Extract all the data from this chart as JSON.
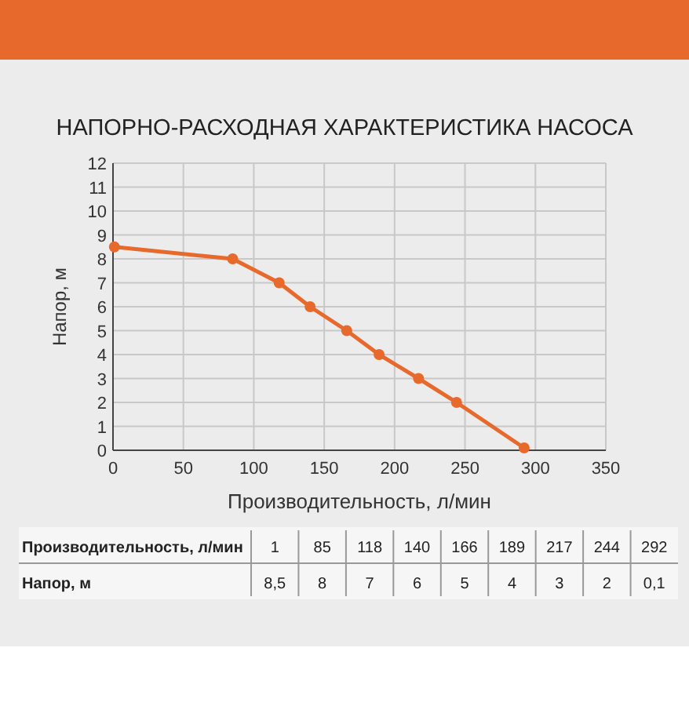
{
  "chart_data": [
    {
      "type": "line",
      "title": "НАПОРНО-РАСХОДНАЯ ХАРАКТЕРИСТИКА НАСОСА",
      "xlabel": "Производительность, л/мин",
      "ylabel": "Напор, м",
      "series": [
        {
          "color": "#e8692c",
          "x": [
            1,
            85,
            118,
            140,
            166,
            189,
            217,
            244,
            292
          ],
          "values": [
            8.5,
            8,
            7,
            6,
            5,
            4,
            3,
            2,
            0.1
          ]
        }
      ],
      "xlim": [
        0,
        350
      ],
      "xticks": [
        0,
        50,
        100,
        150,
        200,
        250,
        300,
        350
      ],
      "ylim": [
        0,
        12
      ],
      "yticks": [
        0,
        1,
        2,
        3,
        4,
        5,
        6,
        7,
        8,
        9,
        10,
        11,
        12
      ],
      "grid": true,
      "marker": "circle",
      "line_style": "solid"
    },
    {
      "type": "other",
      "xlabel": "Производительность, л/мин",
      "ylabel": "Напор, м",
      "categories": [
        "1",
        "85",
        "118",
        "140",
        "166",
        "189",
        "217",
        "244",
        "292"
      ],
      "value_labels": [
        "8,5",
        "8",
        "7",
        "6",
        "5",
        "4",
        "3",
        "2",
        "0,1"
      ]
    }
  ]
}
